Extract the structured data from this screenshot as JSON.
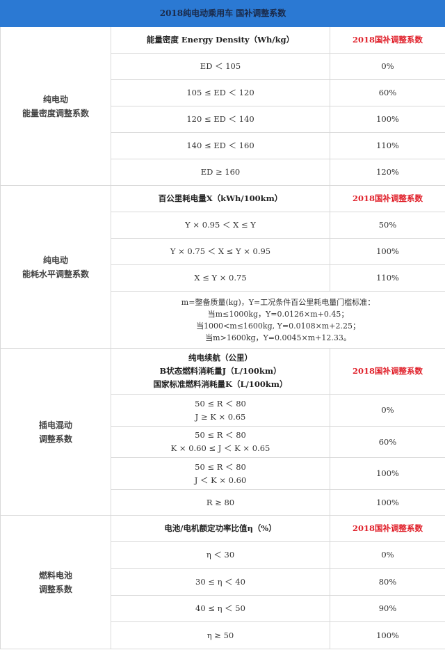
{
  "title": "2018纯电动乘用车 国补调整系数",
  "colors": {
    "header_bg": "#2b79d3",
    "accent_red": "#e0202a"
  },
  "sections": [
    {
      "category": [
        "纯电动",
        "能量密度调整系数"
      ],
      "header": [
        "能量密度 Energy Density（Wh/kg）"
      ],
      "coef_header": "2018国补调整系数",
      "rows": [
        {
          "cond": [
            "ED ＜ 105"
          ],
          "value": "0%"
        },
        {
          "cond": [
            "105 ≤ ED ＜ 120"
          ],
          "value": "60%"
        },
        {
          "cond": [
            "120 ≤ ED ＜ 140"
          ],
          "value": "100%"
        },
        {
          "cond": [
            "140 ≤ ED ＜ 160"
          ],
          "value": "110%"
        },
        {
          "cond": [
            "ED ≥ 160"
          ],
          "value": "120%"
        }
      ]
    },
    {
      "category": [
        "纯电动",
        "能耗水平调整系数"
      ],
      "header": [
        "百公里耗电量X（kWh/100km）"
      ],
      "coef_header": "2018国补调整系数",
      "rows": [
        {
          "cond": [
            "Y × 0.95 ＜ X ≤ Y"
          ],
          "value": "50%"
        },
        {
          "cond": [
            "Y × 0.75 ＜ X ≤ Y × 0.95"
          ],
          "value": "100%"
        },
        {
          "cond": [
            "X ≤ Y × 0.75"
          ],
          "value": "110%"
        }
      ],
      "note": [
        "m=整备质量(kg)，Y=工况条件百公里耗电量门槛标准：",
        "当m≤1000kg，Y=0.0126×m+0.45；",
        "当1000<m≤1600kg, Y=0.0108×m+2.25；",
        "当m>1600kg，Y=0.0045×m+12.33。"
      ]
    },
    {
      "category": [
        "插电混动",
        "调整系数"
      ],
      "header": [
        "纯电续航（公里）",
        "B状态燃料消耗量J（L/100km）",
        "国家标准燃料消耗量K（L/100km）"
      ],
      "coef_header": "2018国补调整系数",
      "rows": [
        {
          "cond": [
            "50 ≤ R ＜ 80",
            "J ≥ K × 0.65"
          ],
          "value": "0%"
        },
        {
          "cond": [
            "50 ≤ R ＜ 80",
            "K × 0.60 ≤ J ＜ K × 0.65"
          ],
          "value": "60%"
        },
        {
          "cond": [
            "50 ≤ R ＜ 80",
            "J ＜ K × 0.60"
          ],
          "value": "100%"
        },
        {
          "cond": [
            "R ≥ 80"
          ],
          "value": "100%"
        }
      ]
    },
    {
      "category": [
        "燃料电池",
        "调整系数"
      ],
      "header": [
        "电池/电机额定功率比值η（%）"
      ],
      "coef_header": "2018国补调整系数",
      "rows": [
        {
          "cond": [
            "η ＜ 30"
          ],
          "value": "0%"
        },
        {
          "cond": [
            "30 ≤ η ＜ 40"
          ],
          "value": "80%"
        },
        {
          "cond": [
            "40 ≤ η ＜ 50"
          ],
          "value": "90%"
        },
        {
          "cond": [
            "η ≥ 50"
          ],
          "value": "100%"
        }
      ]
    }
  ]
}
